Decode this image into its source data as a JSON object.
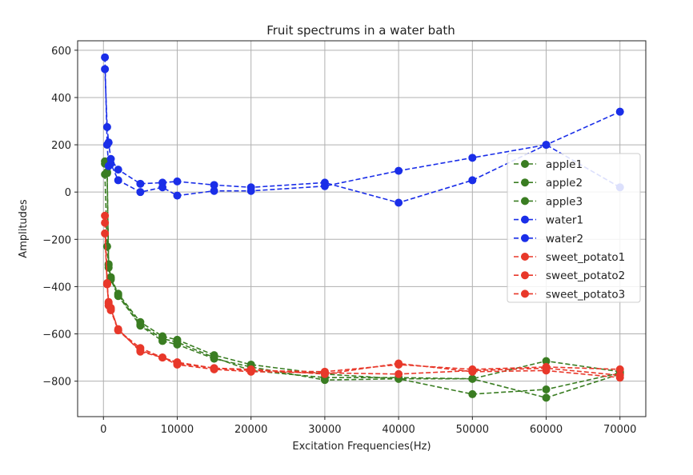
{
  "chart_data": {
    "type": "line",
    "title": "Fruit spectrums in a water bath",
    "xlabel": "Excitation Frequencies(Hz)",
    "ylabel": "Amplitudes",
    "xlim": [
      -3500,
      73500
    ],
    "ylim": [
      -950,
      640
    ],
    "xticks": [
      0,
      10000,
      20000,
      30000,
      40000,
      50000,
      60000,
      70000
    ],
    "yticks": [
      -800,
      -600,
      -400,
      -200,
      0,
      200,
      400,
      600
    ],
    "xtick_labels": [
      "0",
      "10000",
      "20000",
      "30000",
      "40000",
      "50000",
      "60000",
      "70000"
    ],
    "ytick_labels": [
      "−800",
      "−600",
      "−400",
      "−200",
      "0",
      "200",
      "400",
      "600"
    ],
    "grid": true,
    "legend_position": "right",
    "x": [
      200,
      500,
      700,
      1000,
      2000,
      5000,
      8000,
      10000,
      15000,
      20000,
      30000,
      40000,
      50000,
      60000,
      70000
    ],
    "series": [
      {
        "name": "apple1",
        "color": "#3a7d22",
        "values": [
          120,
          80,
          -305,
          -360,
          -430,
          -550,
          -610,
          -625,
          -690,
          -730,
          -770,
          -790,
          -790,
          -715,
          -760
        ]
      },
      {
        "name": "apple2",
        "color": "#3a7d22",
        "values": [
          75,
          -230,
          -320,
          -370,
          -440,
          -565,
          -630,
          -645,
          -705,
          -740,
          -795,
          -790,
          -855,
          -835,
          -765
        ]
      },
      {
        "name": "apple3",
        "color": "#3a7d22",
        "values": [
          130,
          85,
          -310,
          -365,
          -435,
          -560,
          -620,
          -635,
          -700,
          -755,
          -785,
          -785,
          -790,
          -870,
          -770
        ]
      },
      {
        "name": "water1",
        "color": "#1a2ee8",
        "values": [
          520,
          275,
          210,
          140,
          95,
          35,
          40,
          45,
          30,
          20,
          40,
          -45,
          50,
          200,
          340
        ]
      },
      {
        "name": "water2",
        "color": "#1a2ee8",
        "values": [
          570,
          200,
          110,
          120,
          50,
          0,
          20,
          -15,
          5,
          5,
          25,
          90,
          145,
          200,
          20
        ]
      },
      {
        "name": "sweet_potato1",
        "color": "#e8382a",
        "values": [
          -100,
          -390,
          -470,
          -500,
          -585,
          -660,
          -700,
          -725,
          -745,
          -755,
          -760,
          -730,
          -750,
          -740,
          -750
        ]
      },
      {
        "name": "sweet_potato2",
        "color": "#e8382a",
        "values": [
          -130,
          -385,
          -465,
          -490,
          -585,
          -670,
          -700,
          -720,
          -745,
          -750,
          -770,
          -725,
          -760,
          -755,
          -785
        ]
      },
      {
        "name": "sweet_potato3",
        "color": "#e8382a",
        "values": [
          -175,
          -390,
          -480,
          -495,
          -580,
          -675,
          -700,
          -730,
          -750,
          -760,
          -765,
          -770,
          -755,
          -745,
          -775
        ]
      }
    ]
  }
}
